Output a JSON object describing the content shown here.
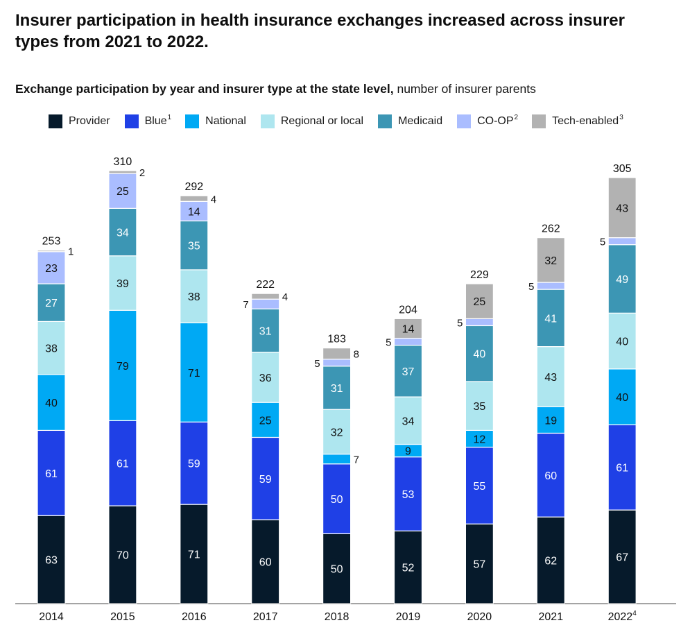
{
  "title": "Insurer participation in health insurance exchanges increased across insurer types from 2021 to 2022.",
  "subtitle_bold": "Exchange participation by year and insurer type at the state level,",
  "subtitle_rest": " number of insurer parents",
  "colors": {
    "Provider": "#061a2b",
    "Blue": "#1f40e6",
    "National": "#00a9f4",
    "Regional or local": "#aee6ef",
    "Medicaid": "#3c96b4",
    "CO-OP": "#aabdff",
    "Tech-enabled": "#b2b2b2"
  },
  "legend": [
    {
      "label": "Provider",
      "sup": ""
    },
    {
      "label": "Blue",
      "sup": "1"
    },
    {
      "label": "National",
      "sup": ""
    },
    {
      "label": "Regional or local",
      "sup": ""
    },
    {
      "label": "Medicaid",
      "sup": ""
    },
    {
      "label": "CO-OP",
      "sup": "2"
    },
    {
      "label": "Tech-enabled",
      "sup": "3"
    }
  ],
  "chart_data": {
    "type": "bar",
    "stacked": true,
    "ylim": [
      0,
      310
    ],
    "categories": [
      "2014",
      "2015",
      "2016",
      "2017",
      "2018",
      "2019",
      "2020",
      "2021",
      "2022"
    ],
    "category_sups": [
      "",
      "",
      "",
      "",
      "",
      "",
      "",
      "",
      "4"
    ],
    "totals": [
      253,
      310,
      292,
      222,
      183,
      204,
      229,
      262,
      305
    ],
    "series": [
      {
        "name": "Provider",
        "values": [
          63,
          70,
          71,
          60,
          50,
          52,
          57,
          62,
          67
        ]
      },
      {
        "name": "Blue",
        "values": [
          61,
          61,
          59,
          59,
          50,
          53,
          55,
          60,
          61
        ]
      },
      {
        "name": "National",
        "values": [
          40,
          79,
          71,
          25,
          7,
          9,
          12,
          19,
          40
        ]
      },
      {
        "name": "Regional or local",
        "values": [
          38,
          39,
          38,
          36,
          32,
          34,
          35,
          43,
          40
        ]
      },
      {
        "name": "Medicaid",
        "values": [
          27,
          34,
          35,
          31,
          31,
          37,
          40,
          41,
          49
        ]
      },
      {
        "name": "CO-OP",
        "values": [
          23,
          25,
          14,
          7,
          5,
          5,
          5,
          5,
          5
        ]
      },
      {
        "name": "Tech-enabled",
        "values": [
          1,
          2,
          4,
          4,
          8,
          14,
          25,
          32,
          43
        ]
      }
    ]
  }
}
